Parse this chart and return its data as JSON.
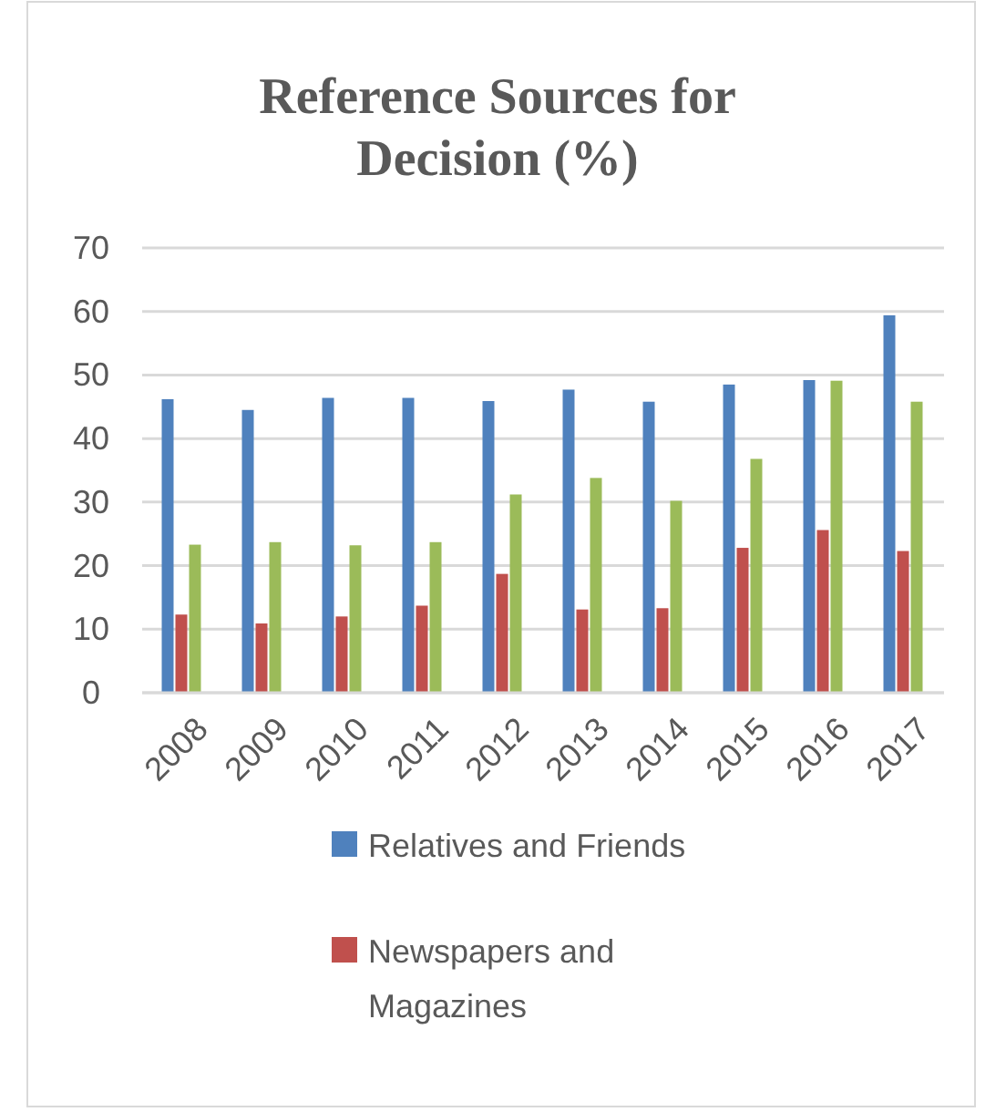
{
  "chart_data": {
    "type": "bar",
    "title": "Reference Sources for Decision (%)",
    "categories": [
      "2008",
      "2009",
      "2010",
      "2011",
      "2012",
      "2013",
      "2014",
      "2015",
      "2016",
      "2017"
    ],
    "series": [
      {
        "name": "Relatives and Friends",
        "color": "#4f81bd",
        "values": [
          46.2,
          44.5,
          46.4,
          46.4,
          45.9,
          47.7,
          45.8,
          48.5,
          49.2,
          59.4
        ]
      },
      {
        "name": "Newspapers and Magazines",
        "color": "#c0504d",
        "values": [
          12.3,
          10.9,
          12.0,
          13.7,
          18.7,
          13.1,
          13.3,
          22.8,
          25.6,
          22.3
        ]
      },
      {
        "color": "#9bbb59",
        "values": [
          23.3,
          23.7,
          23.2,
          23.7,
          31.2,
          33.8,
          30.2,
          36.8,
          49.1,
          45.8
        ]
      }
    ],
    "ylim": [
      0,
      70
    ],
    "yticks": [
      0,
      10,
      20,
      30,
      40,
      50,
      60,
      70
    ],
    "grid": "y",
    "legend": "bottom"
  }
}
